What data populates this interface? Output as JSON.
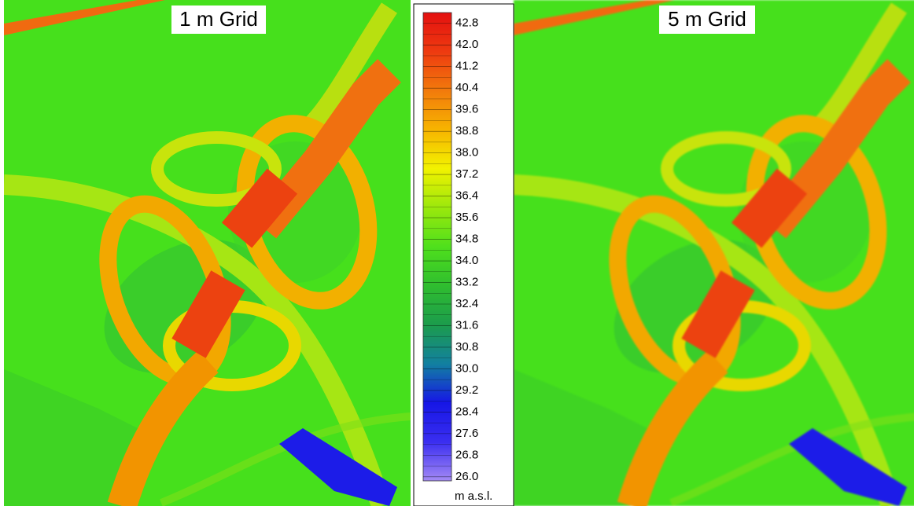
{
  "panels": [
    {
      "title": "1 m Grid"
    },
    {
      "title": "5 m Grid"
    }
  ],
  "colorbar": {
    "unit": "m a.s.l.",
    "range": [
      25.85,
      43.2
    ],
    "colors": [
      "#a48af5",
      "#3a2ef0",
      "#1616e6",
      "#1280a0",
      "#1c9c4c",
      "#2fbd2f",
      "#4fe01c",
      "#9be80c",
      "#f2f200",
      "#f7b400",
      "#f27a0c",
      "#ee3a10",
      "#e41010"
    ],
    "ticks": [
      42.8,
      {
        "value": 42,
        "label": "42.0"
      },
      41.2,
      40.4,
      39.6,
      38.8,
      {
        "value": 38,
        "label": "38.0"
      },
      37.2,
      36.4,
      35.6,
      34.8,
      {
        "value": 34,
        "label": "34.0"
      },
      33.2,
      32.4,
      31.6,
      30.8,
      {
        "value": 30,
        "label": "30.0"
      },
      29.2,
      28.4,
      27.6,
      26.8,
      {
        "value": 26,
        "label": "26.0"
      }
    ]
  }
}
